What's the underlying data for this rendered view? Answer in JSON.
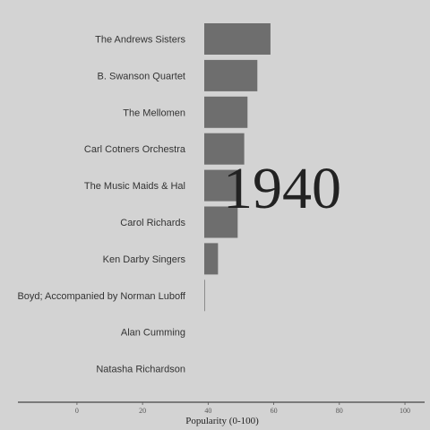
{
  "chart_data": {
    "type": "bar",
    "orientation": "horizontal",
    "categories": [
      "The Andrews Sisters",
      "B. Swanson Quartet",
      "The Mellomen",
      "Carl Cotners Orchestra",
      "The Music Maids & Hal",
      "Carol Richards",
      "Ken Darby Singers",
      "Boyd; Accompanied by Norman Luboff",
      "Alan Cumming",
      "Natasha Richardson"
    ],
    "values": [
      59,
      55,
      52,
      51,
      50,
      49,
      43,
      39,
      37,
      37
    ],
    "title": "",
    "annotation": "1940",
    "xlabel": "Popularity (0-100)",
    "ylabel": "",
    "xlim": [
      -18,
      106
    ],
    "xticks": [
      0,
      20,
      40,
      60,
      80,
      100
    ],
    "bar_color": "#6e6e6e",
    "background": "#d3d3d3",
    "grid": false,
    "legend": "none"
  }
}
